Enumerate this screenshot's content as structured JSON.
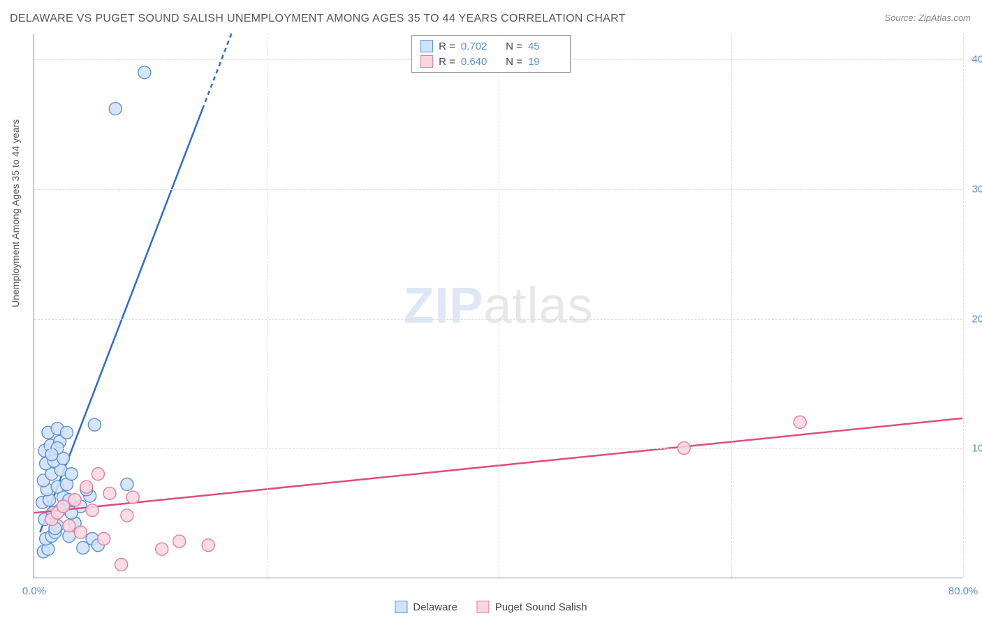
{
  "title": "DELAWARE VS PUGET SOUND SALISH UNEMPLOYMENT AMONG AGES 35 TO 44 YEARS CORRELATION CHART",
  "source": "Source: ZipAtlas.com",
  "yaxis_label": "Unemployment Among Ages 35 to 44 years",
  "watermark": {
    "zip": "ZIP",
    "rest": "atlas"
  },
  "chart": {
    "type": "scatter",
    "xlim": [
      0,
      80
    ],
    "ylim": [
      0,
      42
    ],
    "x_ticks": [
      0,
      80
    ],
    "x_tick_labels": [
      "0.0%",
      "80.0%"
    ],
    "y_ticks": [
      10,
      20,
      30,
      40
    ],
    "y_tick_labels": [
      "10.0%",
      "20.0%",
      "30.0%",
      "40.0%"
    ],
    "hgrid_at": [
      10,
      20,
      30,
      40
    ],
    "vgrid_at": [
      20,
      40,
      60,
      80
    ],
    "background_color": "#ffffff",
    "grid_color": "#dddddd",
    "axis_color": "#888888",
    "marker_radius": 9,
    "marker_stroke_width": 1.4,
    "line_width": 2.5,
    "series": [
      {
        "name": "Delaware",
        "fill": "#cfe2f6",
        "stroke": "#5b8fd6",
        "line_color": "#2f6bcc",
        "R": "0.702",
        "N": "45",
        "trend": {
          "x1": 0.5,
          "y1": 3.5,
          "x2": 17,
          "y2": 42
        },
        "trend_dash_from_x": 14.5,
        "points": [
          [
            0.8,
            2.0
          ],
          [
            1.2,
            2.2
          ],
          [
            1.0,
            3.0
          ],
          [
            1.5,
            3.2
          ],
          [
            1.8,
            3.5
          ],
          [
            2.0,
            4.0
          ],
          [
            0.9,
            4.5
          ],
          [
            1.6,
            5.0
          ],
          [
            2.2,
            5.2
          ],
          [
            0.7,
            5.8
          ],
          [
            1.3,
            6.0
          ],
          [
            2.5,
            6.2
          ],
          [
            3.0,
            6.0
          ],
          [
            1.1,
            6.8
          ],
          [
            2.0,
            7.0
          ],
          [
            2.8,
            7.2
          ],
          [
            0.8,
            7.5
          ],
          [
            1.5,
            8.0
          ],
          [
            2.3,
            8.3
          ],
          [
            3.2,
            8.0
          ],
          [
            1.0,
            8.8
          ],
          [
            1.7,
            9.0
          ],
          [
            2.5,
            9.2
          ],
          [
            0.9,
            9.8
          ],
          [
            1.4,
            10.2
          ],
          [
            2.2,
            10.5
          ],
          [
            1.2,
            11.2
          ],
          [
            2.0,
            11.5
          ],
          [
            2.8,
            11.2
          ],
          [
            5.2,
            11.8
          ],
          [
            1.8,
            3.8
          ],
          [
            3.5,
            4.2
          ],
          [
            4.0,
            5.5
          ],
          [
            4.8,
            6.3
          ],
          [
            3.0,
            3.2
          ],
          [
            5.0,
            3.0
          ],
          [
            8.0,
            7.2
          ],
          [
            4.2,
            2.3
          ],
          [
            5.5,
            2.5
          ],
          [
            2.0,
            10.0
          ],
          [
            1.5,
            9.5
          ],
          [
            7.0,
            36.2
          ],
          [
            9.5,
            39.0
          ],
          [
            3.2,
            5.0
          ],
          [
            4.5,
            6.8
          ]
        ]
      },
      {
        "name": "Puget Sound Salish",
        "fill": "#f9d6e0",
        "stroke": "#e67da0",
        "line_color": "#e04c7e",
        "R": "0.640",
        "N": "19",
        "trend": {
          "x1": 0,
          "y1": 5.0,
          "x2": 80,
          "y2": 12.3
        },
        "points": [
          [
            1.5,
            4.5
          ],
          [
            2.0,
            5.0
          ],
          [
            2.5,
            5.5
          ],
          [
            3.0,
            4.0
          ],
          [
            3.5,
            6.0
          ],
          [
            4.0,
            3.5
          ],
          [
            4.5,
            7.0
          ],
          [
            5.0,
            5.2
          ],
          [
            5.5,
            8.0
          ],
          [
            6.0,
            3.0
          ],
          [
            6.5,
            6.5
          ],
          [
            7.5,
            1.0
          ],
          [
            8.0,
            4.8
          ],
          [
            8.5,
            6.2
          ],
          [
            11.0,
            2.2
          ],
          [
            12.5,
            2.8
          ],
          [
            15.0,
            2.5
          ],
          [
            56.0,
            10.0
          ],
          [
            66.0,
            12.0
          ]
        ]
      }
    ]
  },
  "legend_bottom": [
    {
      "label": "Delaware",
      "fill": "#cfe2f6",
      "stroke": "#5b8fd6"
    },
    {
      "label": "Puget Sound Salish",
      "fill": "#f9d6e0",
      "stroke": "#e67da0"
    }
  ]
}
